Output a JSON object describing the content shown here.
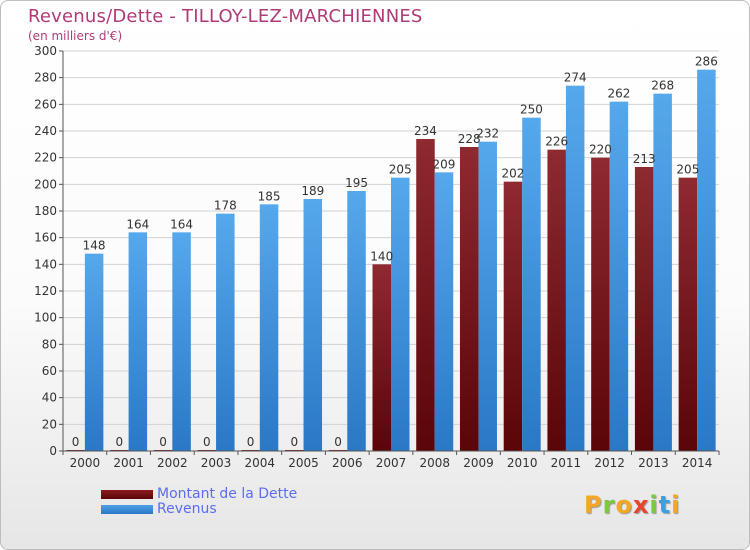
{
  "title": "Revenus/Dette - TILLOY-LEZ-MARCHIENNES",
  "subtitle": "(en milliers d'€)",
  "colors": {
    "dette": "#8b1a1f",
    "dette_dark": "#5a0508",
    "revenus": "#4fa0e6",
    "revenus_dark": "#2a78c6",
    "title": "#b03a78",
    "legend_text": "#5b6cf0"
  },
  "legend": {
    "dette_label": "Montant de la Dette",
    "revenus_label": "Revenus"
  },
  "logo": {
    "letters": [
      "P",
      "r",
      "o",
      "x",
      "i",
      "t",
      "i"
    ],
    "colors": [
      "#f5a623",
      "#7ac943",
      "#f5a623",
      "#e8452c",
      "#7ac943",
      "#3aa0e0",
      "#f5a623"
    ]
  },
  "chart_data": {
    "type": "bar",
    "categories": [
      "2000",
      "2001",
      "2002",
      "2003",
      "2004",
      "2005",
      "2006",
      "2007",
      "2008",
      "2009",
      "2010",
      "2011",
      "2012",
      "2013",
      "2014"
    ],
    "series": [
      {
        "name": "Montant de la Dette",
        "values": [
          0,
          0,
          0,
          0,
          0,
          0,
          0,
          140,
          234,
          228,
          202,
          226,
          220,
          213,
          205
        ]
      },
      {
        "name": "Revenus",
        "values": [
          148,
          164,
          164,
          178,
          185,
          189,
          195,
          205,
          209,
          232,
          250,
          274,
          262,
          268,
          286
        ]
      }
    ],
    "ylim": [
      0,
      300
    ],
    "yticks": [
      0,
      20,
      40,
      60,
      80,
      100,
      120,
      140,
      160,
      180,
      200,
      220,
      240,
      260,
      280,
      300
    ],
    "grid": true,
    "legend_position": "bottom-left"
  }
}
